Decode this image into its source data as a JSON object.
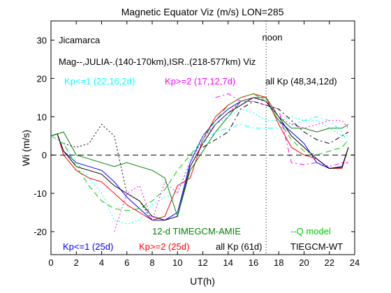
{
  "chart_data": {
    "type": "line",
    "title": "Magnetic Equator Viz (m/s) LON=285",
    "xlabel": "UT(h)",
    "ylabel": "Wi (m/s)",
    "xlim": [
      0,
      24
    ],
    "ylim": [
      -26,
      35
    ],
    "xticks": [
      0,
      2,
      4,
      6,
      8,
      10,
      12,
      14,
      16,
      18,
      20,
      22,
      24
    ],
    "yticks": [
      -20,
      -10,
      0,
      10,
      20,
      30
    ],
    "grid": false,
    "annotations": {
      "site": "Jicamarca",
      "sources": "Mag--,JULIA-.(140-170km),ISR..(218-577km) Viz",
      "noon": "noon",
      "noon_x": 17
    },
    "legend_top": [
      {
        "text": "Kp<=1 (22,16,2d)",
        "color": "#00ffff"
      },
      {
        "text": "Kp>=2 (17,12,7d)",
        "color": "#ff00ff"
      },
      {
        "text": "all Kp (48,34,12d)",
        "color": "#000000"
      }
    ],
    "legend_bottom_row1": [
      {
        "text": "12-d TIMEGCM-AMIE",
        "color": "#008000"
      },
      {
        "text": "--Q model",
        "color": "#00cc00"
      }
    ],
    "legend_bottom_row2": [
      {
        "text": "Kp<=1 (25d)",
        "color": "#0000ff"
      },
      {
        "text": "Kp>=2 (25d)",
        "color": "#ff0000"
      },
      {
        "text": "all Kp (61d)",
        "color": "#000000"
      },
      {
        "text": "TIEGCM-WT",
        "color": "#000000"
      }
    ],
    "series": [
      {
        "color": "#0000ff",
        "dash": "",
        "x": [
          0,
          0.5,
          1,
          2,
          3,
          4,
          5,
          6,
          7,
          8,
          9,
          10,
          11,
          12,
          13,
          14,
          15,
          16,
          17,
          18,
          19,
          20,
          21,
          22,
          23,
          23.5
        ],
        "y": [
          5,
          5.5,
          1,
          -2,
          -3,
          -4,
          -7,
          -11,
          -14,
          -17,
          -17,
          -15,
          -2,
          5,
          9,
          12,
          14,
          15,
          14,
          9,
          6,
          3,
          -2,
          -3.5,
          -3,
          2
        ]
      },
      {
        "color": "#ff0000",
        "dash": "",
        "x": [
          0,
          0.5,
          1,
          2,
          3,
          4,
          5,
          6,
          7,
          8,
          9,
          10,
          11,
          12,
          13,
          14,
          15,
          16,
          17,
          18,
          19,
          20,
          21,
          22,
          23,
          23.5
        ],
        "y": [
          5,
          5.5,
          0,
          -4,
          -6,
          -7,
          -10,
          -13,
          -15,
          -17,
          -16,
          -8,
          -6,
          4,
          10,
          13,
          15,
          16,
          15,
          8,
          2,
          0,
          -1,
          -3.5,
          -3.5,
          2
        ]
      },
      {
        "color": "#000000",
        "dash": "",
        "x": [
          0,
          0.5,
          1,
          2,
          3,
          4,
          5,
          6,
          7,
          8,
          9,
          10,
          11,
          12,
          13,
          14,
          15,
          16,
          17,
          18,
          19,
          20,
          21,
          22,
          23,
          23.5
        ],
        "y": [
          5,
          5.5,
          1,
          -3,
          -4,
          -5,
          -8,
          -10,
          -12,
          -16,
          -17,
          -16,
          -3,
          3,
          8,
          11,
          13,
          15,
          14,
          10,
          5,
          2,
          -1,
          -3.5,
          -3.2,
          2
        ]
      },
      {
        "color": "#008000",
        "dash": "",
        "x": [
          0,
          0.5,
          1,
          2,
          3,
          4,
          5,
          6,
          7,
          8,
          9,
          10,
          11,
          12,
          13,
          14,
          15,
          16,
          17,
          18,
          19,
          20,
          21,
          22,
          23,
          23.5
        ],
        "y": [
          5,
          5.5,
          6,
          0,
          -1,
          -2,
          -3,
          -2,
          -3,
          -4,
          -6,
          -16,
          -4,
          1,
          6,
          10,
          14,
          15,
          15,
          10,
          7,
          7,
          6,
          7,
          7,
          8
        ]
      },
      {
        "color": "#00cc00",
        "dash": "8,5",
        "x": [
          0,
          1,
          2,
          3,
          4,
          5,
          6,
          7,
          8,
          9,
          10,
          11,
          12,
          13,
          14,
          15,
          16,
          17,
          18,
          19,
          20,
          21,
          22,
          23,
          23.5
        ],
        "y": [
          5,
          3,
          -3,
          -8,
          -12,
          -14,
          -14.5,
          -14,
          -12,
          -9,
          -4,
          0,
          4,
          9,
          13,
          15,
          16,
          14,
          9,
          4,
          1,
          0,
          1,
          2,
          4
        ]
      },
      {
        "color": "#00ffff",
        "dash": "2,3",
        "x": [
          0,
          1,
          2,
          3,
          4,
          5,
          6,
          7,
          8,
          9,
          10,
          11,
          12,
          13,
          14,
          15,
          16,
          17,
          18,
          19,
          20,
          21,
          22,
          23,
          23.5
        ],
        "y": [
          5,
          3,
          -2,
          -6,
          -10,
          -17,
          -18,
          -17,
          -13,
          -11,
          -10,
          -1,
          5,
          8,
          10,
          12,
          11,
          9,
          9,
          10,
          9,
          9,
          7,
          5,
          5
        ]
      },
      {
        "color": "#00ffff",
        "dash": "7,4,2,4",
        "x": [
          12,
          13,
          14,
          15,
          16,
          17,
          18,
          19,
          20,
          21,
          22,
          23,
          23.5
        ],
        "y": [
          3,
          6,
          7,
          8,
          7,
          7,
          7,
          8,
          9,
          10,
          9,
          6,
          3
        ]
      },
      {
        "color": "#ff00ff",
        "dash": "2,3",
        "x": [
          5,
          6,
          7,
          8,
          9,
          10,
          11,
          12,
          13,
          14,
          15,
          16,
          17,
          18,
          19,
          20,
          21,
          22,
          23,
          23.5
        ],
        "y": [
          -20,
          -10,
          -8,
          -17,
          -7,
          -10,
          -2,
          4,
          8,
          11,
          14,
          15,
          14,
          10,
          8,
          7,
          8,
          9,
          9,
          7
        ]
      },
      {
        "color": "#ff00ff",
        "dash": "7,4,2,4",
        "x": [
          13,
          14,
          15,
          16,
          17,
          18,
          19,
          20,
          21,
          22,
          23,
          23.5
        ],
        "y": [
          15,
          16,
          14,
          14,
          13,
          12,
          -2,
          -2.5,
          -2,
          -3,
          -2,
          -2
        ]
      },
      {
        "color": "#000000",
        "dash": "2,3",
        "x": [
          1,
          2,
          3,
          4,
          5,
          6,
          7,
          8
        ],
        "y": [
          3,
          2,
          3,
          8,
          5,
          -10,
          -12,
          -17
        ]
      },
      {
        "color": "#000000",
        "dash": "7,4,2,4",
        "x": [
          12,
          13,
          14,
          15,
          16,
          17,
          18,
          19,
          20,
          21,
          22,
          23,
          23.5
        ],
        "y": [
          2,
          4,
          6,
          12,
          14,
          13,
          12,
          9,
          6,
          4,
          3,
          5,
          6
        ]
      }
    ]
  }
}
